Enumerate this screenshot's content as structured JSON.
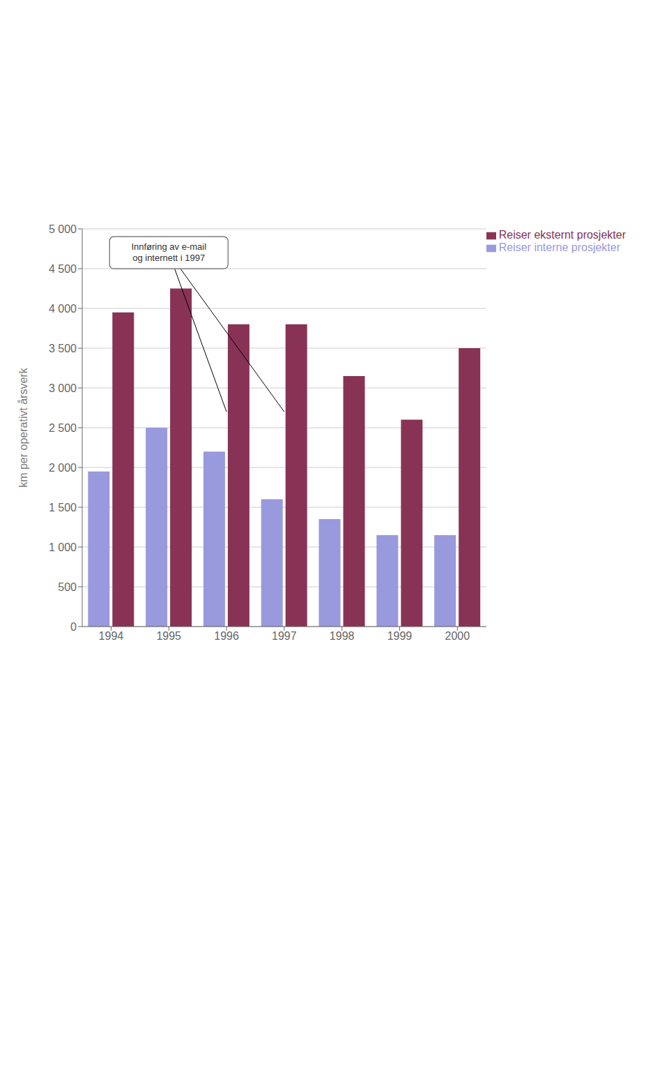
{
  "chart_data": {
    "type": "bar",
    "categories": [
      "1994",
      "1995",
      "1996",
      "1997",
      "1998",
      "1999",
      "2000"
    ],
    "series": [
      {
        "name": "Reiser interne prosjekter",
        "color": "#9999dd",
        "values": [
          1950,
          2500,
          2200,
          1600,
          1350,
          1150,
          1150
        ]
      },
      {
        "name": "Reiser eksternt prosjekter",
        "color": "#883355",
        "values": [
          3950,
          4250,
          3800,
          3800,
          3150,
          2600,
          3500
        ]
      }
    ],
    "ylabel": "km per operativt årsverk",
    "ylim": [
      0,
      5000
    ],
    "yticks": [
      0,
      500,
      {
        "value": 1000,
        "label": "1 000"
      },
      {
        "value": 1500,
        "label": "1 500"
      },
      {
        "value": 2000,
        "label": "2 000"
      },
      {
        "value": 2500,
        "label": "2 500"
      },
      {
        "value": 3000,
        "label": "3 000"
      },
      {
        "value": 3500,
        "label": "3 500"
      },
      {
        "value": 4000,
        "label": "4 000"
      },
      {
        "value": 4500,
        "label": "4 500"
      },
      {
        "value": 5000,
        "label": "5 000"
      }
    ],
    "grid": true,
    "legend": "upper right",
    "annotations": [
      {
        "text": "Innføring av e-mail\nog internett i 1997",
        "x": "1995",
        "y": 4700,
        "arrows_to": [
          {
            "x": "1996",
            "y": 2700
          },
          {
            "x": "1997",
            "y": 2700
          }
        ]
      }
    ]
  }
}
